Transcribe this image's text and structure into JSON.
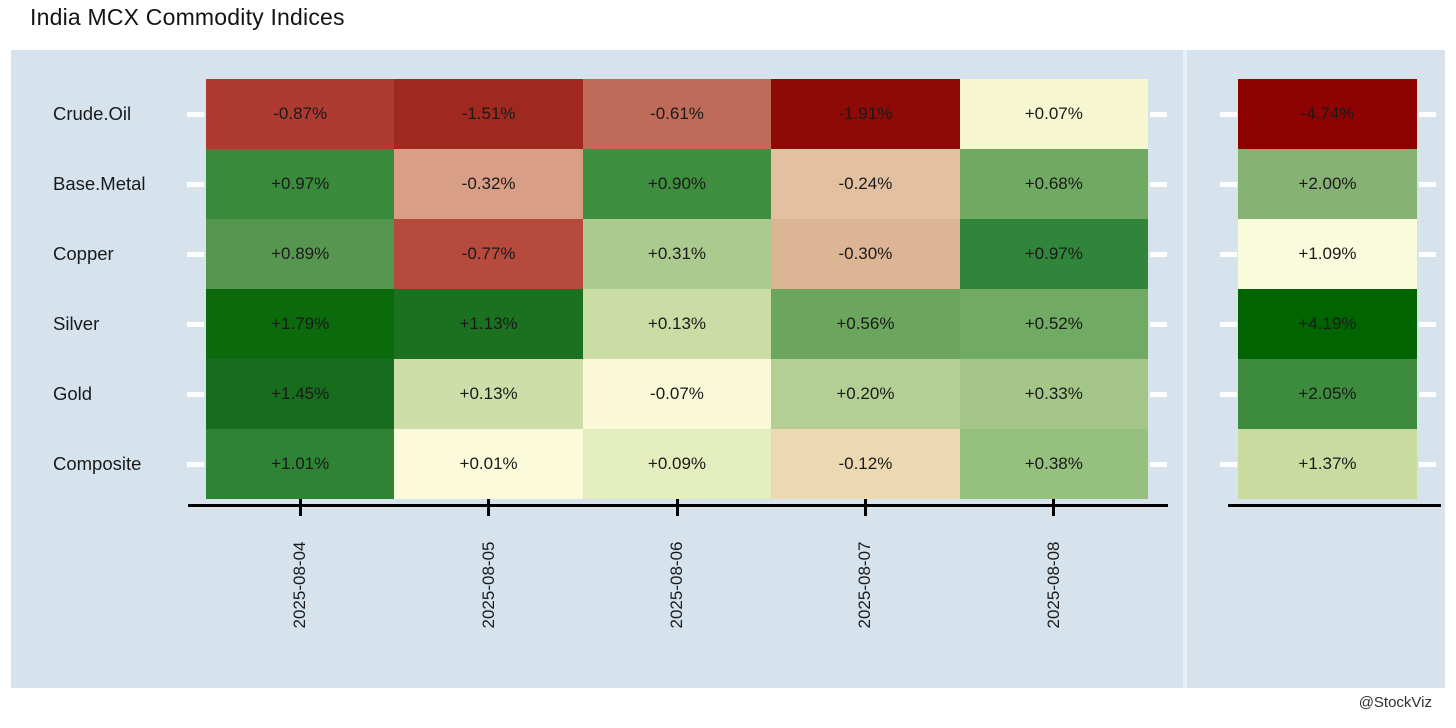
{
  "title": "India MCX Commodity Indices",
  "watermark": "@StockViz",
  "panel": {
    "background": "#D6E3EC"
  },
  "chart_data": {
    "type": "heatmap",
    "title": "India MCX Commodity Indices",
    "x": [
      "2025-08-04",
      "2025-08-05",
      "2025-08-06",
      "2025-08-07",
      "2025-08-08"
    ],
    "rows": [
      "Crude.Oil",
      "Base.Metal",
      "Copper",
      "Silver",
      "Gold",
      "Composite"
    ],
    "value_unit": "percent_daily_change",
    "legend": "none",
    "palette": {
      "negative": "#8B0000",
      "neutral": "#FFFFE0",
      "positive": "#006400"
    },
    "series": [
      {
        "name": "Crude.Oil",
        "values": [
          -0.87,
          -1.51,
          -0.61,
          -1.91,
          0.07
        ],
        "labels": [
          "-0.87%",
          "-1.51%",
          "-0.61%",
          "-1.91%",
          "+0.07%"
        ],
        "colors": [
          "#AE3B32",
          "#9F291F",
          "#C06A59",
          "#8D0A06",
          "#F6F7D1"
        ],
        "total": -4.74,
        "total_label": "-4.74%",
        "total_color": "#8E0202"
      },
      {
        "name": "Base.Metal",
        "values": [
          0.97,
          -0.32,
          0.9,
          -0.24,
          0.68
        ],
        "labels": [
          "+0.97%",
          "-0.32%",
          "+0.90%",
          "-0.24%",
          "+0.68%"
        ],
        "colors": [
          "#3A8A3C",
          "#D99E86",
          "#3F8D3E",
          "#E2C0A0",
          "#70A961"
        ],
        "total": 2.0,
        "total_label": "+2.00%",
        "total_color": "#86B274"
      },
      {
        "name": "Copper",
        "values": [
          0.89,
          -0.77,
          0.31,
          -0.3,
          0.97
        ],
        "labels": [
          "+0.89%",
          "-0.77%",
          "+0.31%",
          "-0.30%",
          "+0.97%"
        ],
        "colors": [
          "#569750",
          "#B54A3D",
          "#AACA8E",
          "#DCB595",
          "#31853A"
        ],
        "total": 1.09,
        "total_label": "+1.09%",
        "total_color": "#FAFADD"
      },
      {
        "name": "Silver",
        "values": [
          1.79,
          1.13,
          0.13,
          0.56,
          0.52
        ],
        "labels": [
          "+1.79%",
          "+1.13%",
          "+0.13%",
          "+0.56%",
          "+0.52%"
        ],
        "colors": [
          "#0A6A0C",
          "#1C7120",
          "#CBDCA5",
          "#6CA65E",
          "#71AA62"
        ],
        "total": 4.19,
        "total_label": "+4.19%",
        "total_color": "#006400"
      },
      {
        "name": "Gold",
        "values": [
          1.45,
          0.13,
          -0.07,
          0.2,
          0.33
        ],
        "labels": [
          "+1.45%",
          "+0.13%",
          "-0.07%",
          "+0.20%",
          "+0.33%"
        ],
        "colors": [
          "#186C1E",
          "#CEDEA8",
          "#F9F9D8",
          "#B3CF93",
          "#A4C789"
        ],
        "total": 2.05,
        "total_label": "+2.05%",
        "total_color": "#3D8C3E"
      },
      {
        "name": "Composite",
        "values": [
          1.01,
          0.01,
          0.09,
          -0.12,
          0.38
        ],
        "labels": [
          "+1.01%",
          "+0.01%",
          "+0.09%",
          "-0.12%",
          "+0.38%"
        ],
        "colors": [
          "#2F8335",
          "#FBFBDC",
          "#E4EDBD",
          "#ECD9B2",
          "#96C07D"
        ],
        "total": 1.37,
        "total_label": "+1.37%",
        "total_color": "#C9DB9F"
      }
    ],
    "totals_column": {
      "values": [
        -4.74,
        2.0,
        1.09,
        4.19,
        2.05,
        1.37
      ],
      "labels": [
        "-4.74%",
        "+2.00%",
        "+1.09%",
        "+4.19%",
        "+2.05%",
        "+1.37%"
      ]
    }
  }
}
